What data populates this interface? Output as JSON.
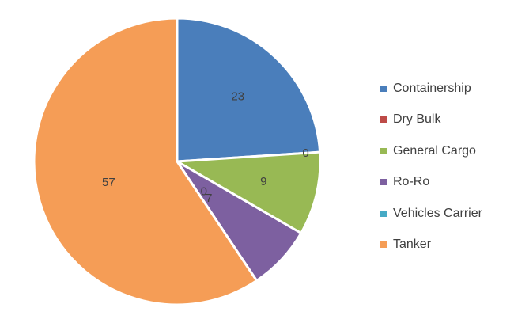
{
  "chart_data": {
    "type": "pie",
    "title": "",
    "categories": [
      "Containership",
      "Dry Bulk",
      "General Cargo",
      "Ro-Ro",
      "Vehicles Carrier",
      "Tanker"
    ],
    "values": [
      23,
      0,
      9,
      7,
      0,
      57
    ],
    "data_labels": [
      "23",
      "0",
      "9",
      "7",
      "0",
      "57"
    ],
    "colors": [
      "#4a7ebb",
      "#be4b48",
      "#98b954",
      "#7d60a0",
      "#46aac5",
      "#f59d56"
    ],
    "start_angle_deg": 0,
    "direction": "clockwise",
    "legend_position": "right"
  }
}
